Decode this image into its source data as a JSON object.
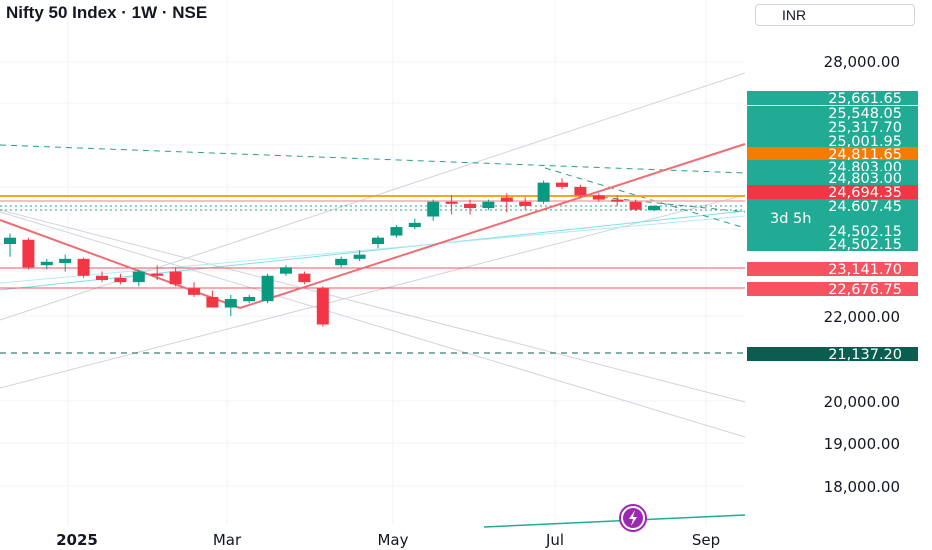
{
  "header": {
    "title": "Nifty 50 Index · 1W · NSE",
    "currency": "INR"
  },
  "chart_data": {
    "type": "candlestick",
    "title": "Nifty 50 Index · 1W · NSE",
    "ylim": [
      17500,
      28700
    ],
    "yticks": [
      {
        "label": "28,000.00",
        "value": 28000
      },
      {
        "label": "22,000.00",
        "value": 22000
      },
      {
        "label": "20,000.00",
        "value": 20000
      },
      {
        "label": "19,000.00",
        "value": 19000
      },
      {
        "label": "18,000.00",
        "value": 18000
      }
    ],
    "xticks": [
      {
        "label": "2025",
        "bold": true
      },
      {
        "label": "Mar"
      },
      {
        "label": "May"
      },
      {
        "label": "Jul"
      },
      {
        "label": "Sep"
      }
    ],
    "price_tags": [
      {
        "label": "25,661.65",
        "value": 25661.65,
        "color": "#22ab94"
      },
      {
        "label": "25,548.05",
        "value": 25548.05,
        "color": "#22ab94"
      },
      {
        "label": "25,317.70",
        "value": 25317.7,
        "color": "#22ab94"
      },
      {
        "label": "25,001.95",
        "value": 25001.95,
        "color": "#22ab94"
      },
      {
        "label": "24,811.65",
        "value": 24811.65,
        "color": "#f57c00"
      },
      {
        "label": "24,803.00",
        "value": 24803.0,
        "color": "#22ab94"
      },
      {
        "label": "24,803.00",
        "value": 24803.0,
        "color": "#22ab94"
      },
      {
        "label": "24,694.35",
        "value": 24694.35,
        "color": "#f23645"
      },
      {
        "label": "24,607.45",
        "value": 24607.45,
        "color": "#22ab94"
      },
      {
        "label": "3d 5h",
        "value": null,
        "color": "#22ab94"
      },
      {
        "label": "24,502.15",
        "value": 24502.15,
        "color": "#22ab94"
      },
      {
        "label": "24,502.15",
        "value": 24502.15,
        "color": "#22ab94"
      },
      {
        "label": "23,141.70",
        "value": 23141.7,
        "color": "#f7525f"
      },
      {
        "label": "22,676.75",
        "value": 22676.75,
        "color": "#f7525f"
      },
      {
        "label": "21,137.20",
        "value": 21137.2,
        "color": "#0b5e4f"
      }
    ],
    "candles": [
      {
        "o": 23700,
        "h": 23950,
        "l": 23400,
        "c": 23850
      },
      {
        "o": 23800,
        "h": 23850,
        "l": 23100,
        "c": 23150
      },
      {
        "o": 23200,
        "h": 23350,
        "l": 23100,
        "c": 23280
      },
      {
        "o": 23250,
        "h": 23450,
        "l": 23050,
        "c": 23350
      },
      {
        "o": 23350,
        "h": 23380,
        "l": 22900,
        "c": 22950
      },
      {
        "o": 22950,
        "h": 23050,
        "l": 22800,
        "c": 22850
      },
      {
        "o": 22900,
        "h": 23000,
        "l": 22750,
        "c": 22800
      },
      {
        "o": 22800,
        "h": 23100,
        "l": 22700,
        "c": 23050
      },
      {
        "o": 23000,
        "h": 23200,
        "l": 22850,
        "c": 22950
      },
      {
        "o": 23050,
        "h": 23150,
        "l": 22700,
        "c": 22750
      },
      {
        "o": 22650,
        "h": 22800,
        "l": 22450,
        "c": 22500
      },
      {
        "o": 22450,
        "h": 22600,
        "l": 22200,
        "c": 22200
      },
      {
        "o": 22200,
        "h": 22500,
        "l": 22000,
        "c": 22400
      },
      {
        "o": 22350,
        "h": 22500,
        "l": 22300,
        "c": 22450
      },
      {
        "o": 22350,
        "h": 23000,
        "l": 22300,
        "c": 22950
      },
      {
        "o": 23000,
        "h": 23200,
        "l": 22950,
        "c": 23150
      },
      {
        "o": 23000,
        "h": 23050,
        "l": 22750,
        "c": 22800
      },
      {
        "o": 22650,
        "h": 22700,
        "l": 21750,
        "c": 21800
      },
      {
        "o": 23200,
        "h": 23400,
        "l": 23150,
        "c": 23350
      },
      {
        "o": 23350,
        "h": 23550,
        "l": 23300,
        "c": 23450
      },
      {
        "o": 23700,
        "h": 23900,
        "l": 23600,
        "c": 23850
      },
      {
        "o": 23900,
        "h": 24150,
        "l": 23850,
        "c": 24100
      },
      {
        "o": 24100,
        "h": 24300,
        "l": 24050,
        "c": 24200
      },
      {
        "o": 24350,
        "h": 24750,
        "l": 24250,
        "c": 24700
      },
      {
        "o": 24700,
        "h": 24850,
        "l": 24400,
        "c": 24650
      },
      {
        "o": 24650,
        "h": 24750,
        "l": 24400,
        "c": 24550
      },
      {
        "o": 24550,
        "h": 24750,
        "l": 24500,
        "c": 24700
      },
      {
        "o": 24800,
        "h": 24900,
        "l": 24450,
        "c": 24700
      },
      {
        "o": 24700,
        "h": 24800,
        "l": 24500,
        "c": 24600
      },
      {
        "o": 24700,
        "h": 25200,
        "l": 24650,
        "c": 25150
      },
      {
        "o": 25150,
        "h": 25250,
        "l": 25000,
        "c": 25050
      },
      {
        "o": 25050,
        "h": 25100,
        "l": 24800,
        "c": 24850
      },
      {
        "o": 24850,
        "h": 24900,
        "l": 24700,
        "c": 24750
      },
      {
        "o": 24750,
        "h": 24850,
        "l": 24600,
        "c": 24700
      },
      {
        "o": 24700,
        "h": 24750,
        "l": 24480,
        "c": 24510
      },
      {
        "o": 24500,
        "h": 24620,
        "l": 24470,
        "c": 24600
      }
    ]
  }
}
